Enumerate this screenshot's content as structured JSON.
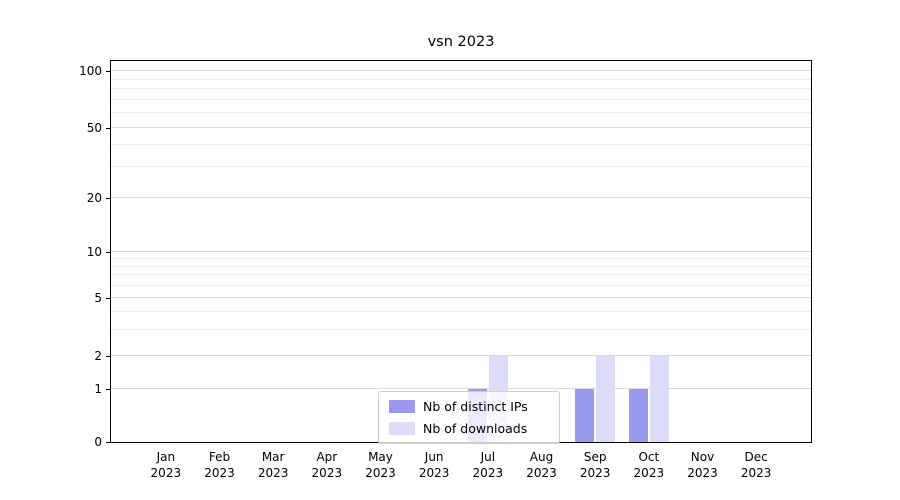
{
  "chart_data": {
    "type": "bar",
    "title": "vsn 2023",
    "categories": [
      {
        "month": "Jan",
        "year": "2023"
      },
      {
        "month": "Feb",
        "year": "2023"
      },
      {
        "month": "Mar",
        "year": "2023"
      },
      {
        "month": "Apr",
        "year": "2023"
      },
      {
        "month": "May",
        "year": "2023"
      },
      {
        "month": "Jun",
        "year": "2023"
      },
      {
        "month": "Jul",
        "year": "2023"
      },
      {
        "month": "Aug",
        "year": "2023"
      },
      {
        "month": "Sep",
        "year": "2023"
      },
      {
        "month": "Oct",
        "year": "2023"
      },
      {
        "month": "Nov",
        "year": "2023"
      },
      {
        "month": "Dec",
        "year": "2023"
      }
    ],
    "series": [
      {
        "name": "Nb of distinct IPs",
        "color": "#9999ee",
        "values": [
          0,
          0,
          0,
          0,
          0,
          0,
          1,
          0,
          1,
          1,
          0,
          0
        ]
      },
      {
        "name": "Nb of downloads",
        "color": "#dcdcf8",
        "values": [
          0,
          0,
          0,
          0,
          0,
          0,
          2,
          0,
          2,
          2,
          0,
          0
        ]
      }
    ],
    "yticks": [
      0,
      1,
      2,
      5,
      10,
      20,
      50,
      100
    ],
    "ylim": [
      0,
      100
    ],
    "yscale": "log",
    "grid": true,
    "legend_position": "lower center"
  }
}
